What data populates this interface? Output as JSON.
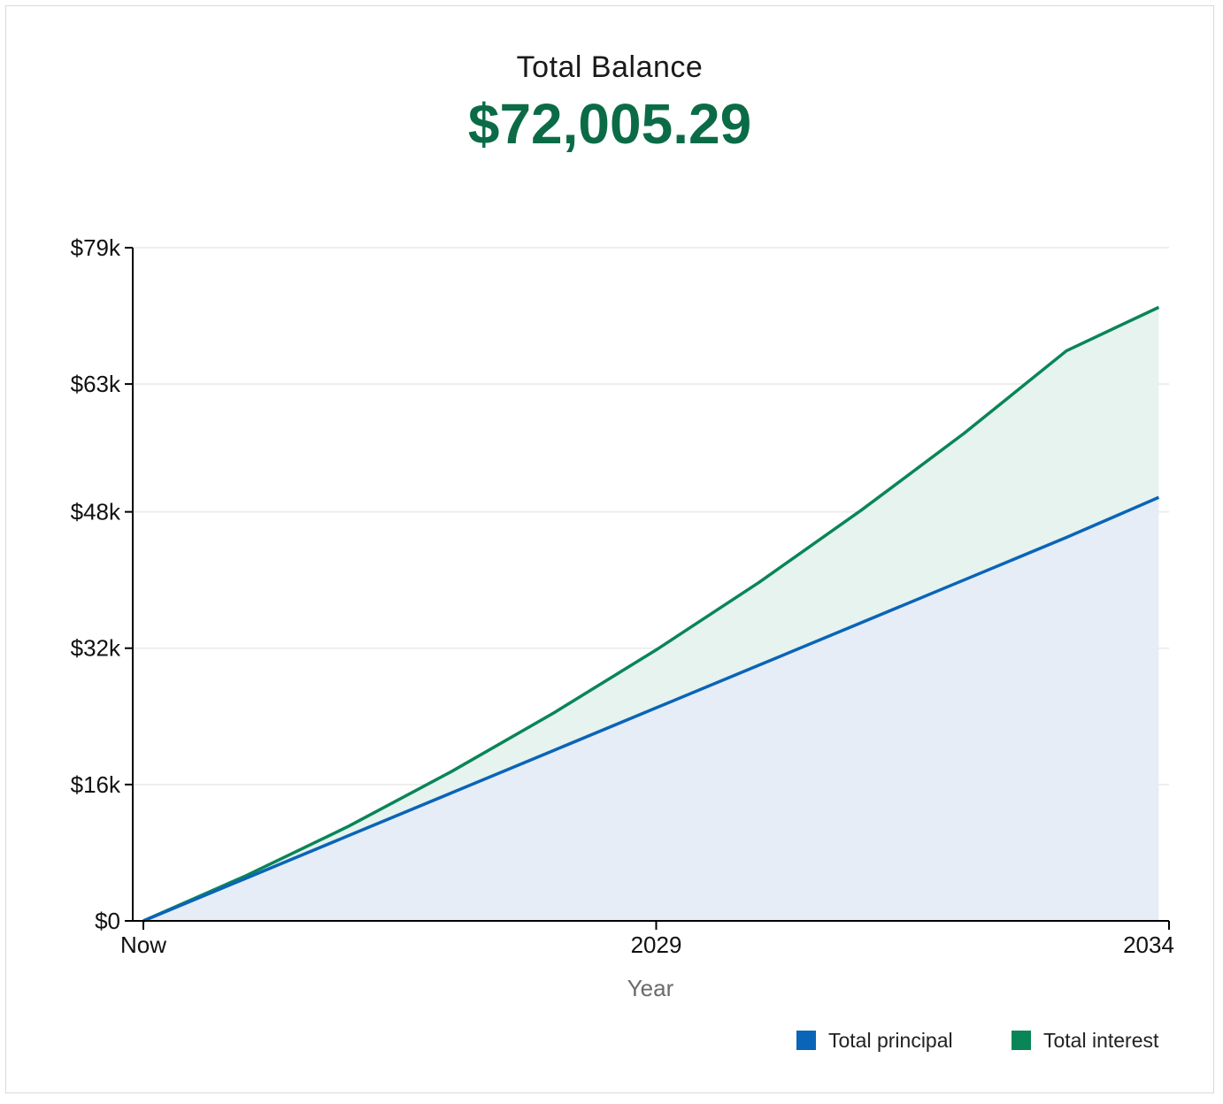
{
  "header": {
    "title": "Total Balance",
    "value": "$72,005.29"
  },
  "colors": {
    "principal": "#0a64b8",
    "interest": "#0a8558",
    "principal_fill": "#e6edf7",
    "interest_fill": "#e6f3ee",
    "headline": "#0b6b47",
    "grid": "#e8e8e8",
    "axis": "#000000"
  },
  "chart_data": {
    "type": "area",
    "title": "Total Balance",
    "xlabel": "Year",
    "ylabel": "",
    "x_ticks": [
      {
        "label": "Now",
        "x": 0
      },
      {
        "label": "2029",
        "x": 5
      },
      {
        "label": "2034",
        "x": 10
      }
    ],
    "xlim": [
      0,
      10
    ],
    "y_ticks": [
      {
        "label": "$0",
        "value": 0
      },
      {
        "label": "$16k",
        "value": 16000
      },
      {
        "label": "$32k",
        "value": 32000
      },
      {
        "label": "$48k",
        "value": 48000
      },
      {
        "label": "$63k",
        "value": 63000
      },
      {
        "label": "$79k",
        "value": 79000
      }
    ],
    "ylim": [
      0,
      79000
    ],
    "grid": true,
    "legend_position": "bottom-right",
    "x": [
      0,
      1,
      2,
      3,
      4,
      5,
      6,
      7,
      8,
      9,
      9.9
    ],
    "series": [
      {
        "name": "Total principal",
        "color_key": "principal",
        "values": [
          0,
          5000,
          10000,
          15000,
          20000,
          25000,
          30000,
          35000,
          40000,
          45000,
          49700
        ]
      },
      {
        "name": "Total interest",
        "color_key": "interest",
        "stacked_total": [
          0,
          5300,
          11100,
          17500,
          24400,
          31800,
          39700,
          48200,
          57200,
          66900,
          72005.29
        ]
      }
    ]
  }
}
